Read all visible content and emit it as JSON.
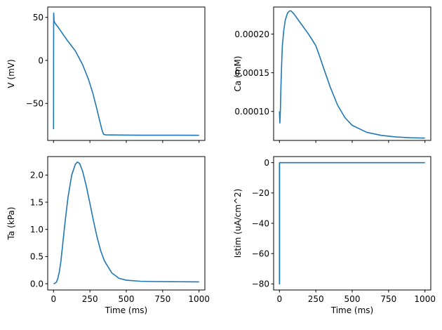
{
  "chart_data": [
    {
      "type": "line",
      "xlabel": "",
      "ylabel": "V (mV)",
      "xlim": [
        -40,
        1040
      ],
      "ylim": [
        -93,
        62
      ],
      "xticks": [
        0,
        250,
        500,
        750,
        1000
      ],
      "xtick_labels": [
        "",
        "",
        "",
        "",
        ""
      ],
      "yticks": [
        50,
        0,
        -50
      ],
      "ytick_labels": [
        "50",
        "0",
        "−50"
      ],
      "series": [
        {
          "name": "V",
          "color": "#1f77b4",
          "x": [
            0,
            0.5,
            1,
            2,
            3,
            5,
            8,
            12,
            20,
            30,
            50,
            75,
            100,
            150,
            200,
            240,
            270,
            300,
            320,
            335,
            345,
            360,
            400,
            500,
            600,
            750,
            1000
          ],
          "y": [
            -80,
            10,
            55,
            52,
            47,
            45,
            44,
            43,
            41,
            39,
            34,
            28,
            22,
            11,
            -5,
            -22,
            -38,
            -58,
            -72,
            -82,
            -86,
            -86.5,
            -86.6,
            -86.8,
            -86.9,
            -86.9,
            -87
          ]
        }
      ]
    },
    {
      "type": "line",
      "xlabel": "",
      "ylabel": "Ca (mM)",
      "xlim": [
        -40,
        1040
      ],
      "ylim": [
        6.25e-05,
        0.000235
      ],
      "xticks": [
        0,
        250,
        500,
        750,
        1000
      ],
      "xtick_labels": [
        "",
        "",
        "",
        "",
        ""
      ],
      "yticks": [
        0.0001,
        0.00015,
        0.0002
      ],
      "ytick_labels": [
        "0.00010",
        "0.00015",
        "0.00020"
      ],
      "series": [
        {
          "name": "Ca",
          "color": "#1f77b4",
          "x": [
            0,
            3,
            7,
            10,
            15,
            20,
            30,
            40,
            55,
            70,
            80,
            100,
            150,
            200,
            250,
            275,
            300,
            350,
            400,
            450,
            500,
            600,
            700,
            800,
            900,
            1000
          ],
          "y": [
            0.0001,
            8.5e-05,
            0.000105,
            0.00013,
            0.00016,
            0.000185,
            0.000205,
            0.000218,
            0.000227,
            0.00023,
            0.00023,
            0.000226,
            0.000213,
            0.0002,
            0.000185,
            0.000172,
            0.000158,
            0.000131,
            0.000108,
            9.2e-05,
            8.2e-05,
            7.3e-05,
            6.9e-05,
            6.7e-05,
            6.6e-05,
            6.55e-05
          ]
        }
      ]
    },
    {
      "type": "line",
      "xlabel": "Time (ms)",
      "ylabel": "Ta (kPa)",
      "xlim": [
        -40,
        1040
      ],
      "ylim": [
        -0.115,
        2.34
      ],
      "xticks": [
        0,
        250,
        500,
        750,
        1000
      ],
      "xtick_labels": [
        "0",
        "250",
        "500",
        "750",
        "1000"
      ],
      "yticks": [
        0.0,
        0.5,
        1.0,
        1.5,
        2.0
      ],
      "ytick_labels": [
        "0.0",
        "0.5",
        "1.0",
        "1.5",
        "2.0"
      ],
      "series": [
        {
          "name": "Ta",
          "color": "#1f77b4",
          "x": [
            0,
            10,
            20,
            30,
            40,
            50,
            60,
            80,
            100,
            125,
            150,
            165,
            180,
            200,
            225,
            250,
            275,
            300,
            325,
            350,
            400,
            450,
            500,
            600,
            700,
            800,
            900,
            1000
          ],
          "y": [
            0.0,
            0.01,
            0.03,
            0.1,
            0.22,
            0.4,
            0.65,
            1.15,
            1.6,
            2.0,
            2.2,
            2.24,
            2.21,
            2.07,
            1.8,
            1.48,
            1.15,
            0.85,
            0.6,
            0.42,
            0.2,
            0.1,
            0.065,
            0.045,
            0.04,
            0.038,
            0.036,
            0.035
          ]
        }
      ]
    },
    {
      "type": "line",
      "xlabel": "Time (ms)",
      "ylabel": "Istim (uA/cm^2)",
      "xlim": [
        -40,
        1040
      ],
      "ylim": [
        -84,
        4
      ],
      "xticks": [
        0,
        250,
        500,
        750,
        1000
      ],
      "xtick_labels": [
        "0",
        "250",
        "500",
        "750",
        "1000"
      ],
      "yticks": [
        0,
        -20,
        -40,
        -60,
        -80
      ],
      "ytick_labels": [
        "0",
        "−20",
        "−40",
        "−60",
        "−80"
      ],
      "series": [
        {
          "name": "Istim",
          "color": "#1f77b4",
          "x": [
            0,
            0,
            1,
            1,
            1000
          ],
          "y": [
            0,
            -80,
            -80,
            0,
            0
          ]
        }
      ]
    }
  ]
}
